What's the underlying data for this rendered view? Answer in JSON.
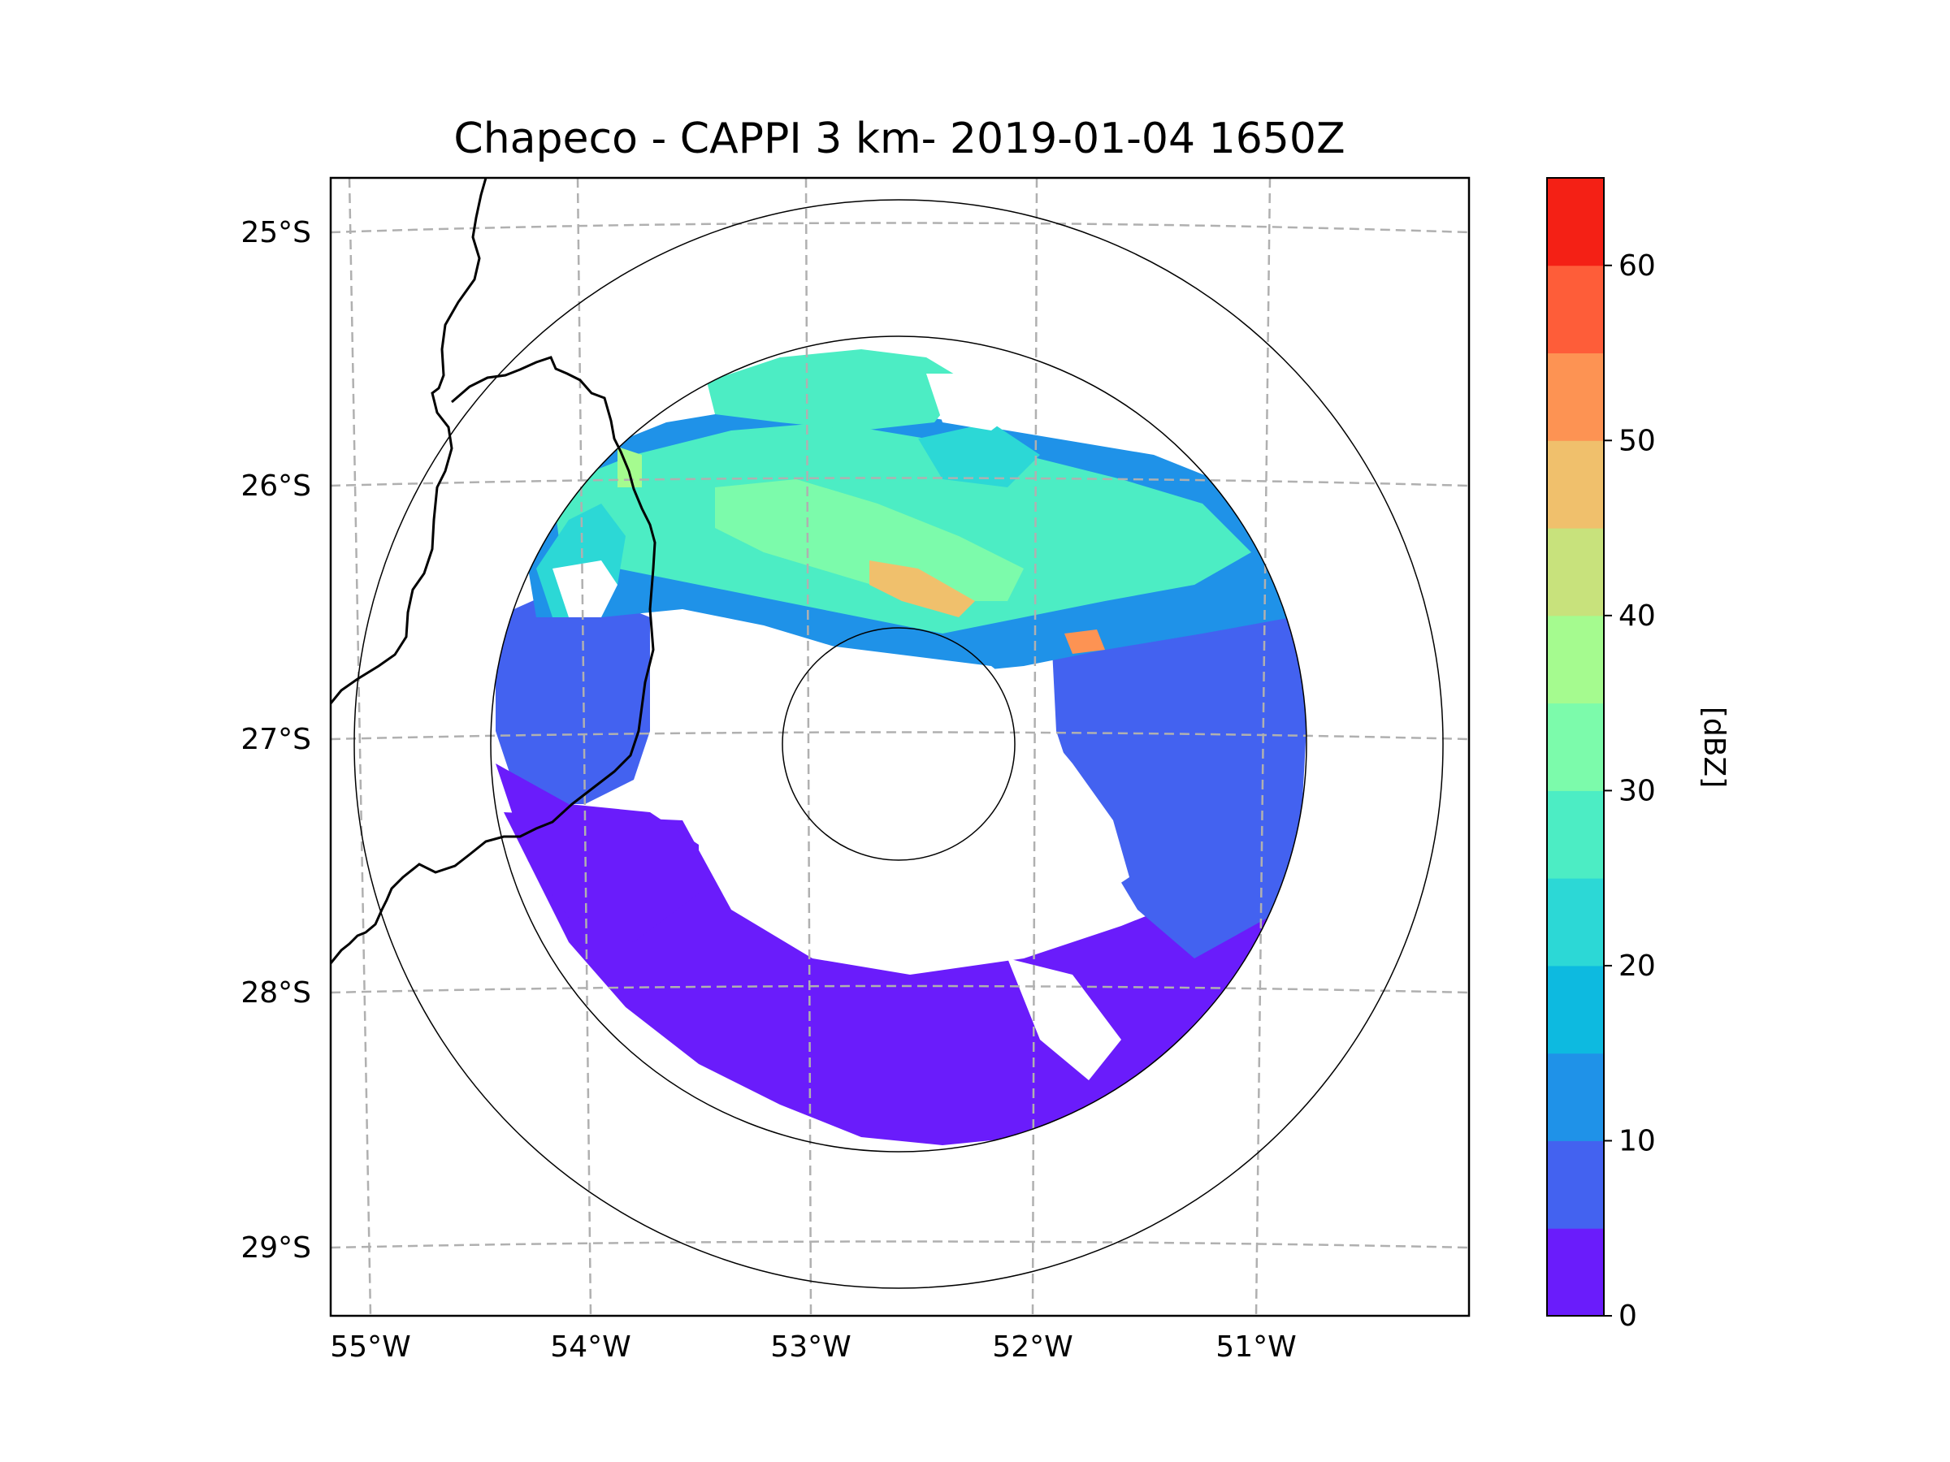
{
  "title": "Chapeco - CAPPI 3 km- 2019-01-04 1650Z",
  "lat_ticks": [
    {
      "value": -25,
      "label": "25°S"
    },
    {
      "value": -26,
      "label": "26°S"
    },
    {
      "value": -27,
      "label": "27°S"
    },
    {
      "value": -28,
      "label": "28°S"
    },
    {
      "value": -29,
      "label": "29°S"
    }
  ],
  "lon_ticks": [
    {
      "value": -55,
      "label": "55°W"
    },
    {
      "value": -54,
      "label": "54°W"
    },
    {
      "value": -53,
      "label": "53°W"
    },
    {
      "value": -52,
      "label": "52°W"
    },
    {
      "value": -51,
      "label": "51°W"
    }
  ],
  "colorbar": {
    "label": "[dBZ]",
    "tick_labels": [
      "0",
      "10",
      "20",
      "30",
      "40",
      "50",
      "60"
    ],
    "levels": [
      0,
      5,
      10,
      15,
      20,
      25,
      30,
      35,
      40,
      45,
      50,
      55,
      60,
      65
    ],
    "colors": [
      "#6a1cfb",
      "#4362f0",
      "#1f92e8",
      "#0dbae0",
      "#2cd8d6",
      "#4cedc4",
      "#7cfbab",
      "#a5fb8f",
      "#c8e27c",
      "#f0c06c",
      "#fd9353",
      "#fe5d39",
      "#f42015"
    ]
  },
  "range_rings": [
    "inner",
    "middle",
    "outer"
  ],
  "radar_site": {
    "lon": -52.6,
    "lat": -27.02
  }
}
